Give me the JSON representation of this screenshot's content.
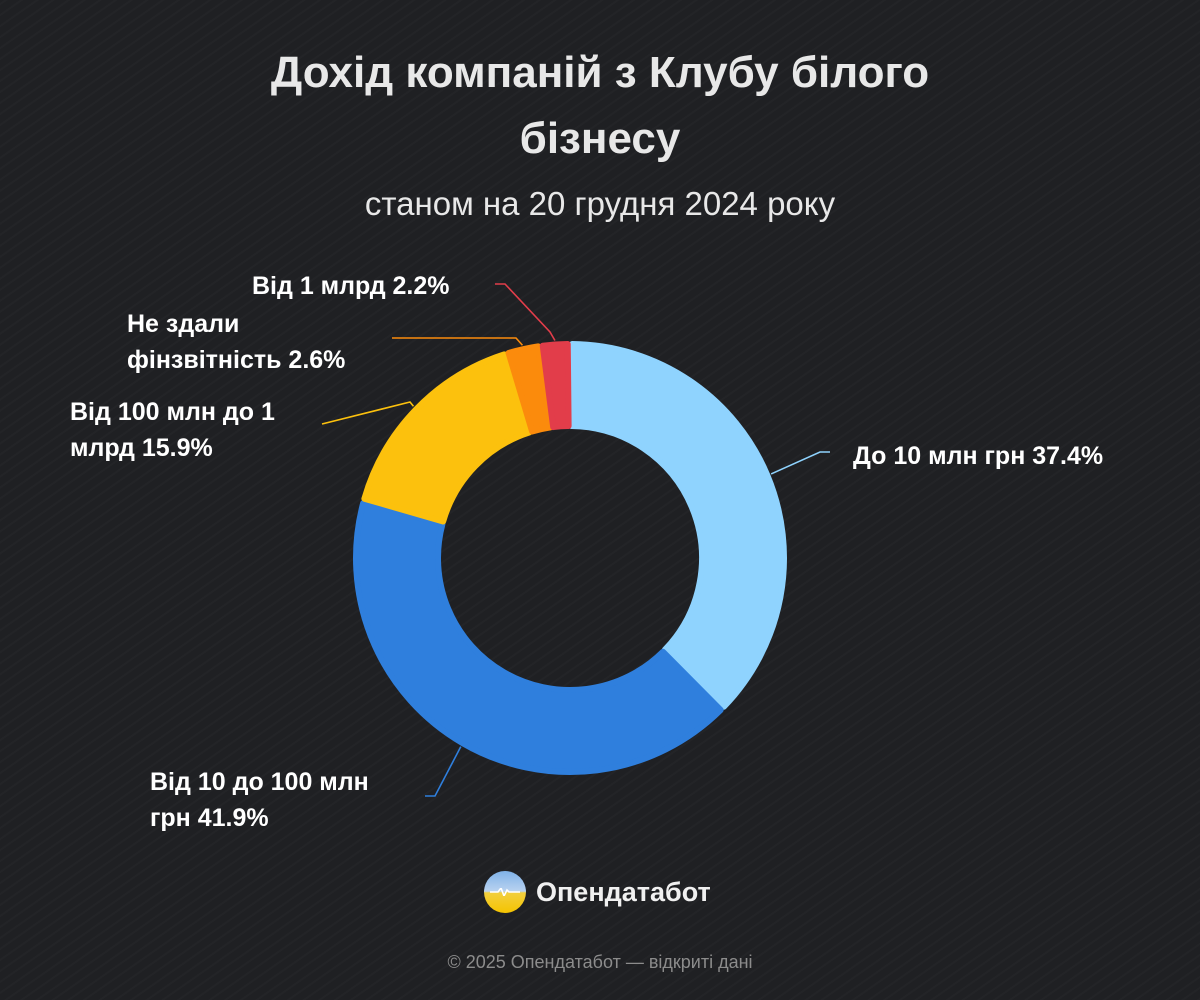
{
  "title_lines": [
    "Дохід компаній з Клубу білого",
    "бізнесу"
  ],
  "subtitle": "станом на 20 грудня 2024 року",
  "chart_data": {
    "type": "pie",
    "style": "donut",
    "slices": [
      {
        "label": "До 10 млн грн",
        "value": 37.4,
        "color": "#8fd3fe"
      },
      {
        "label": "Від 10 до 100 млн грн",
        "value": 41.9,
        "color": "#2f7fdd"
      },
      {
        "label": "Від 100 млн до 1 млрд",
        "value": 15.9,
        "color": "#fcc10d"
      },
      {
        "label": "Не здали фінзвітність",
        "value": 2.6,
        "color": "#fb8b0c"
      },
      {
        "label": "Від 1 млрд",
        "value": 2.2,
        "color": "#e23d4a"
      }
    ],
    "data_labels": [
      [
        "До 10 млн грн 37.4%"
      ],
      [
        "Від 10 до 100 млн",
        "грн 41.9%"
      ],
      [
        "Від 100 млн до 1",
        "млрд 15.9%"
      ],
      [
        "Не здали",
        "фінзвітність 2.6%"
      ],
      [
        "Від 1 млрд 2.2%"
      ]
    ]
  },
  "brand": {
    "name": "Опендатабот",
    "logo_icon": "opendatabot-logo-icon"
  },
  "footer": "© 2025 Опендатабот — відкриті дані"
}
